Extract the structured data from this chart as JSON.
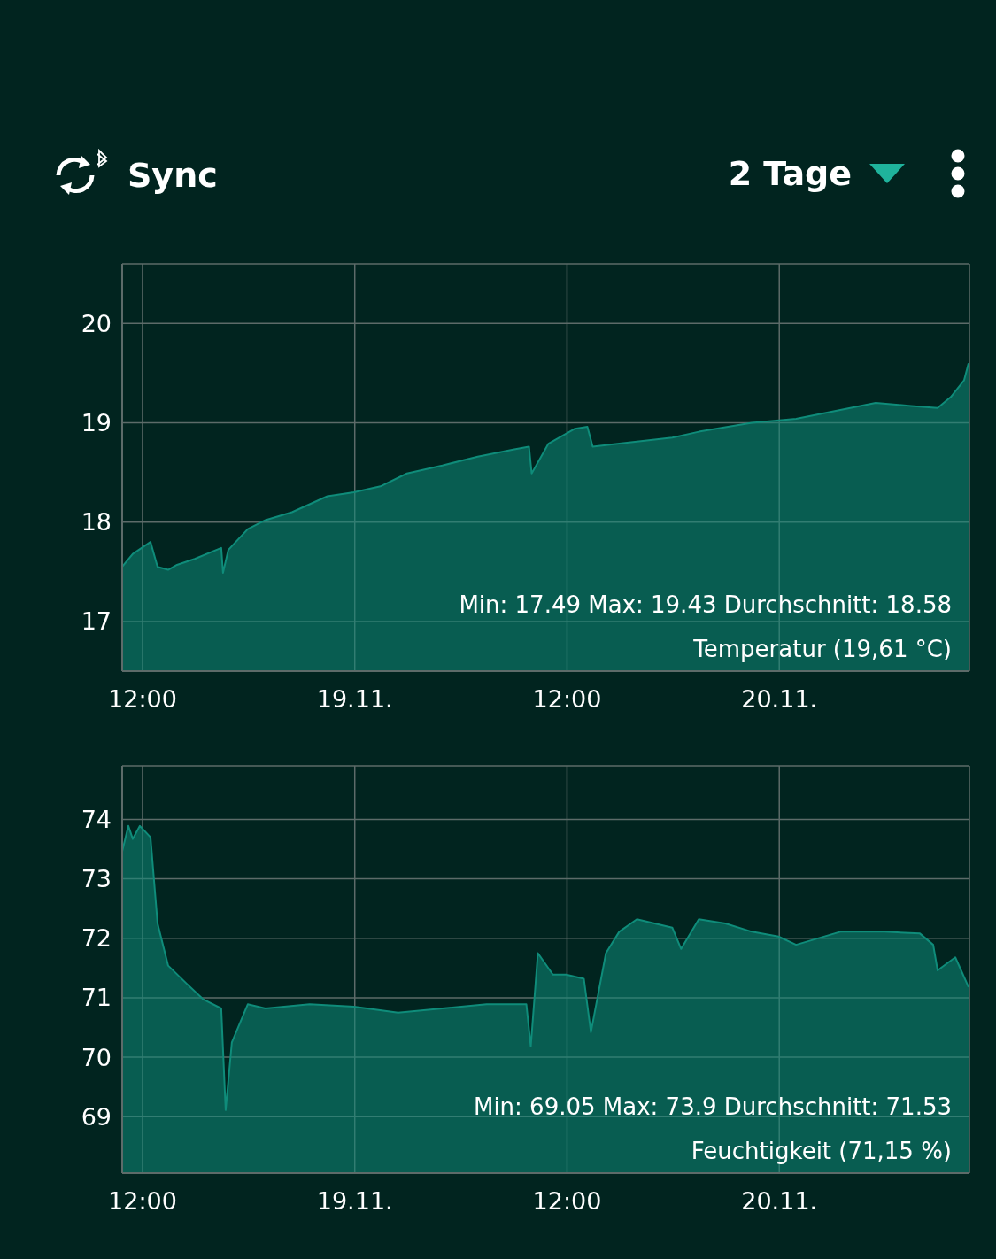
{
  "chart_data": [
    {
      "type": "area",
      "annotations": [
        "Sync",
        "2 Tage",
        "Min: 17.49 Max: 19.43 Durchschnitt: 18.58",
        "Temperatur (19,61 °C)"
      ],
      "x": [
        "--11-18T10:51",
        "--11-18T11:27",
        "--11-18T12:27",
        "--11-18T12:51",
        "--11-18T13:27",
        "--11-18T13:57",
        "--11-18T14:57",
        "--11-18T16:27",
        "--11-18T16:33",
        "--11-18T16:51",
        "--11-18T17:57",
        "--11-18T18:57",
        "--11-18T20:27",
        "--11-18T22:27",
        "--11-18T23:57",
        "--11-19T01:27",
        "--11-19T02:57",
        "--11-19T04:57",
        "--11-19T06:57",
        "--11-19T08:57",
        "--11-19T09:51",
        "--11-19T10:00",
        "--11-19T10:57",
        "--11-19T12:27",
        "--11-19T13:09",
        "--11-19T13:27",
        "--11-19T14:57",
        "--11-19T17:57",
        "--11-19T19:27",
        "--11-19T22:27",
        "--11-20T00:57",
        "--11-20T03:27",
        "--11-20T05:27",
        "--11-20T07:27",
        "--11-20T08:57",
        "--11-20T09:42",
        "--11-20T10:27",
        "--11-20T10:42"
      ],
      "series": [
        {
          "color": "#0f8c7a",
          "values": [
            17.55,
            17.68,
            17.8,
            17.55,
            17.52,
            17.57,
            17.63,
            17.74,
            17.49,
            17.72,
            17.93,
            18.02,
            18.1,
            18.26,
            18.3,
            18.36,
            18.49,
            18.57,
            18.66,
            18.73,
            18.76,
            18.49,
            18.79,
            18.94,
            18.96,
            18.76,
            18.79,
            18.85,
            18.91,
            19.0,
            19.04,
            19.13,
            19.2,
            19.17,
            19.15,
            19.26,
            19.43,
            19.6
          ]
        }
      ],
      "xlim": [
        "--11-18T10:51",
        "--11-20T10:45"
      ],
      "xticks": [
        {
          "value": "--11-18T12:00",
          "label": "12:00"
        },
        {
          "value": "--11-19T00:00",
          "label": "19.11."
        },
        {
          "value": "--11-19T12:00",
          "label": "12:00"
        },
        {
          "value": "--11-20T00:00",
          "label": "20.11."
        }
      ],
      "ylim": [
        16.5,
        20.6
      ],
      "yticks": [
        17,
        18,
        19,
        20
      ],
      "grid": true
    },
    {
      "type": "area",
      "annotations": [
        "Min: 69.05 Max: 73.9 Durchschnitt: 71.53",
        "Feuchtigkeit (71,15 %)"
      ],
      "x": [
        "--11-18T10:51",
        "--11-18T11:12",
        "--11-18T11:27",
        "--11-18T11:51",
        "--11-18T12:27",
        "--11-18T12:51",
        "--11-18T13:27",
        "--11-18T14:27",
        "--11-18T15:27",
        "--11-18T16:27",
        "--11-18T16:42",
        "--11-18T17:03",
        "--11-18T17:57",
        "--11-18T18:57",
        "--11-18T21:27",
        "--11-18T23:57",
        "--11-19T02:27",
        "--11-19T04:57",
        "--11-19T07:27",
        "--11-19T09:42",
        "--11-19T09:57",
        "--11-19T10:21",
        "--11-19T11:12",
        "--11-19T11:57",
        "--11-19T12:57",
        "--11-19T13:21",
        "--11-19T14:12",
        "--11-19T14:57",
        "--11-19T15:57",
        "--11-19T17:57",
        "--11-19T18:27",
        "--11-19T19:27",
        "--11-19T20:57",
        "--11-19T22:27",
        "--11-19T23:57",
        "--11-20T00:57",
        "--11-20T03:27",
        "--11-20T05:57",
        "--11-20T07:57",
        "--11-20T08:42",
        "--11-20T08:57",
        "--11-20T09:57",
        "--11-20T10:42"
      ],
      "series": [
        {
          "color": "#0f8c7a",
          "values": [
            73.46,
            73.89,
            73.67,
            73.89,
            73.7,
            72.25,
            71.54,
            71.25,
            70.97,
            70.82,
            69.11,
            70.25,
            70.89,
            70.82,
            70.89,
            70.85,
            70.75,
            70.82,
            70.89,
            70.89,
            70.18,
            71.75,
            71.39,
            71.39,
            71.32,
            70.42,
            71.75,
            72.11,
            72.32,
            72.18,
            71.82,
            72.32,
            72.25,
            72.11,
            72.03,
            71.89,
            72.11,
            72.11,
            72.08,
            71.89,
            71.46,
            71.68,
            71.18
          ]
        }
      ],
      "xlim": [
        "--11-18T10:51",
        "--11-20T10:45"
      ],
      "xticks": [
        {
          "value": "--11-18T12:00",
          "label": "12:00"
        },
        {
          "value": "--11-19T00:00",
          "label": "19.11."
        },
        {
          "value": "--11-19T12:00",
          "label": "12:00"
        },
        {
          "value": "--11-20T00:00",
          "label": "20.11."
        }
      ],
      "ylim": [
        68.05,
        74.9
      ],
      "yticks": [
        69,
        70,
        71,
        72,
        73,
        74
      ],
      "grid": true
    }
  ]
}
